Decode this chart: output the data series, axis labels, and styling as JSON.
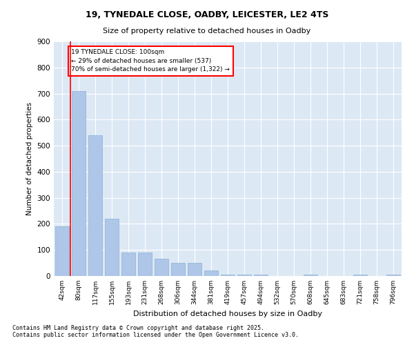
{
  "title_line1": "19, TYNEDALE CLOSE, OADBY, LEICESTER, LE2 4TS",
  "title_line2": "Size of property relative to detached houses in Oadby",
  "xlabel": "Distribution of detached houses by size in Oadby",
  "ylabel": "Number of detached properties",
  "categories": [
    "42sqm",
    "80sqm",
    "117sqm",
    "155sqm",
    "193sqm",
    "231sqm",
    "268sqm",
    "306sqm",
    "344sqm",
    "381sqm",
    "419sqm",
    "457sqm",
    "494sqm",
    "532sqm",
    "570sqm",
    "608sqm",
    "645sqm",
    "683sqm",
    "721sqm",
    "758sqm",
    "796sqm"
  ],
  "values": [
    190,
    710,
    540,
    220,
    90,
    90,
    65,
    50,
    50,
    20,
    5,
    5,
    5,
    0,
    0,
    5,
    0,
    0,
    5,
    0,
    5
  ],
  "bar_color": "#aec6e8",
  "bar_edge_color": "#8ab0d4",
  "red_line_x": 0.5,
  "annotation_text": "19 TYNEDALE CLOSE: 100sqm\n← 29% of detached houses are smaller (537)\n70% of semi-detached houses are larger (1,322) →",
  "ylim": [
    0,
    900
  ],
  "yticks": [
    0,
    100,
    200,
    300,
    400,
    500,
    600,
    700,
    800,
    900
  ],
  "bg_color": "#dde8f5",
  "footer_line1": "Contains HM Land Registry data © Crown copyright and database right 2025.",
  "footer_line2": "Contains public sector information licensed under the Open Government Licence v3.0."
}
